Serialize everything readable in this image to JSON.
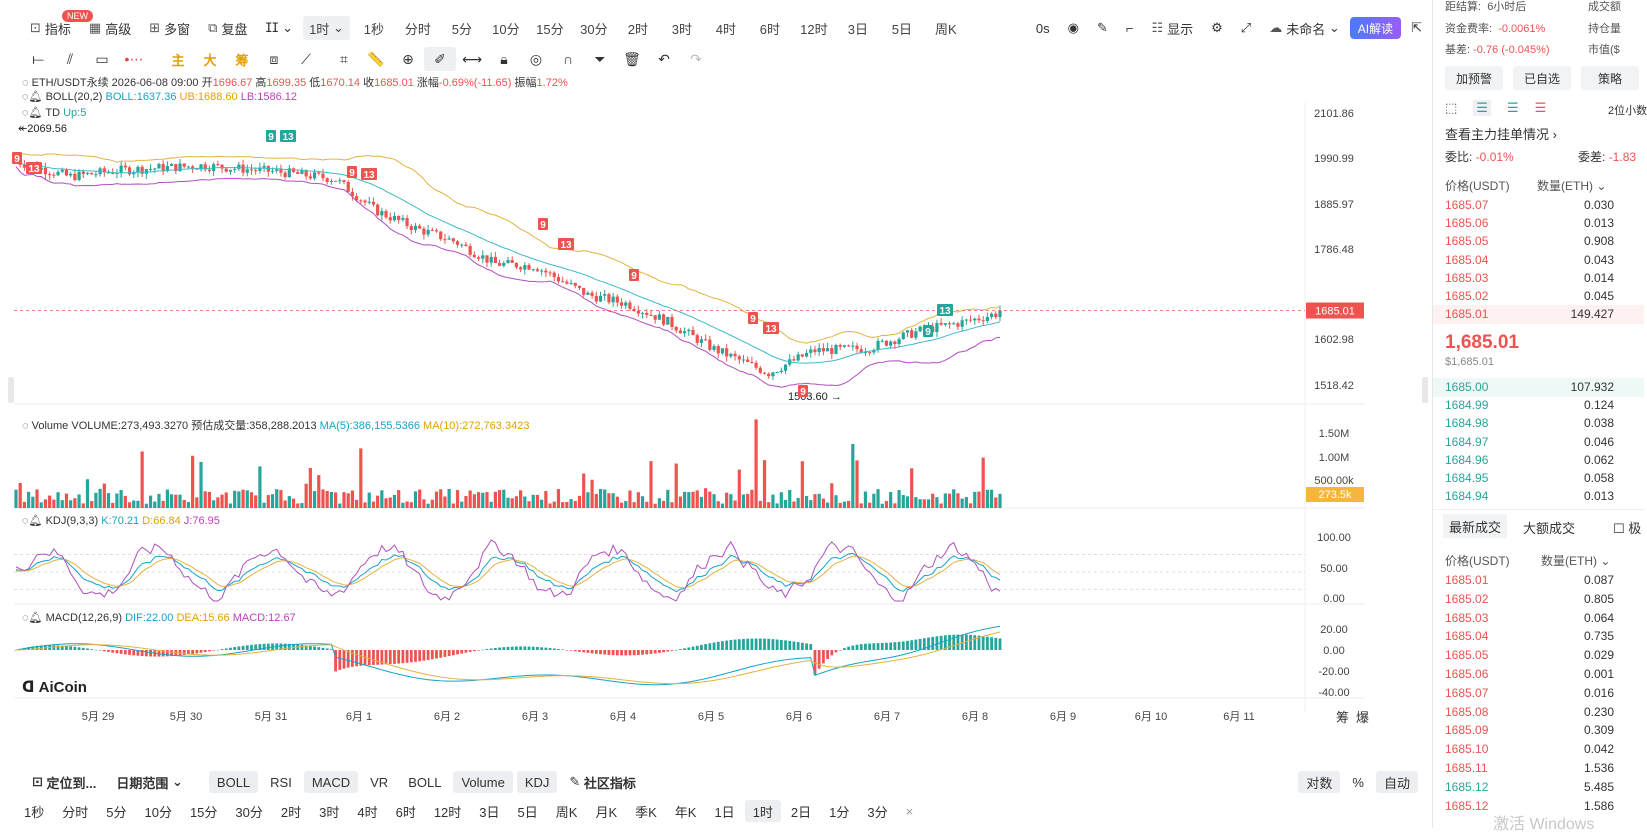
{
  "toolbar": {
    "indicator_label": "指标",
    "new_badge": "NEW",
    "advanced_label": "高级",
    "multi_window_label": "多窗",
    "replay_label": "复盘",
    "interval_current": "1时",
    "intervals": [
      "1秒",
      "分时",
      "5分",
      "10分",
      "15分",
      "30分",
      "2时",
      "3时",
      "4时",
      "6时",
      "12时",
      "3日",
      "5日",
      "周K"
    ],
    "countdown": "0s",
    "display_label": "显示",
    "unnamed_label": "未命名",
    "ai_label": "AI解读"
  },
  "drawing_tools": {
    "zhu_label": "主",
    "da_label": "大",
    "chou_label": "筹"
  },
  "legend": {
    "symbol": "ETH/USDT永续",
    "datetime": "2026-06-08 09:00",
    "open_label": "开",
    "open": "1696.67",
    "high_label": "高",
    "high": "1699.35",
    "low_label": "低",
    "low": "1670.14",
    "close_label": "收",
    "close": "1685.01",
    "change_label": "涨幅",
    "change": "-0.69%(-11.65)",
    "amplitude_label": "振幅",
    "amplitude": "1.72%",
    "boll_name": "BOLL(20,2)",
    "boll": "BOLL:1637.36",
    "ub": "UB:1688.60",
    "lb": "LB:1586.12",
    "td_name": "TD",
    "td_up": "Up:5",
    "volume_name": "Volume",
    "volume": "VOLUME:273,493.3270",
    "volume_est": "预估成交量:358,288.2013",
    "vol_ma5": "MA(5):386,155.5366",
    "vol_ma10": "MA(10):272,763.3423",
    "kdj_name": "KDJ(9,3,3)",
    "kdj_k": "K:70.21",
    "kdj_d": "D:66.84",
    "kdj_j": "J:76.95",
    "macd_name": "MACD(12,26,9)",
    "macd_dif": "DIF:22.00",
    "macd_dea": "DEA:15.66",
    "macd_macd": "MACD:12.67"
  },
  "price_axis": [
    "2101.86",
    "1990.99",
    "1885.97",
    "1786.48",
    "1602.98",
    "1518.42"
  ],
  "current_price_tag": "1685.01",
  "volume_axis": [
    "1.50M",
    "1.00M",
    "500.00k"
  ],
  "volume_tag": "273.5k",
  "kdj_axis": [
    "100.00",
    "50.00",
    "0.00"
  ],
  "macd_axis": [
    "20.00",
    "0.00",
    "-20.00",
    "-40.00"
  ],
  "high_marker": "2069.56",
  "low_marker": "1503.60",
  "td_labels": [
    "9",
    "13"
  ],
  "dates": [
    "5月 29",
    "5月 30",
    "5月 31",
    "6月 1",
    "6月 2",
    "6月 3",
    "6月 4",
    "6月 5",
    "6月 6",
    "6月 7",
    "6月 8",
    "6月 9",
    "6月 10",
    "6月 11"
  ],
  "watermark": "AiCoin",
  "bottom_bar1": {
    "locate_label": "定位到...",
    "date_range_label": "日期范围",
    "indicators": [
      "BOLL",
      "RSI",
      "MACD",
      "VR",
      "BOLL",
      "Volume",
      "KDJ"
    ],
    "community_label": "社区指标",
    "log_label": "对数",
    "pct_label": "%",
    "auto_label": "自动",
    "chip_label": "筹",
    "explode_label": "爆"
  },
  "bottom_bar2": {
    "intervals": [
      "1秒",
      "分时",
      "5分",
      "10分",
      "15分",
      "30分",
      "2时",
      "3时",
      "4时",
      "6时",
      "12时",
      "3日",
      "5日",
      "周K",
      "月K",
      "季K",
      "年K",
      "1日",
      "1时",
      "2日",
      "1分",
      "3分"
    ],
    "active": "1时"
  },
  "right_panel": {
    "settle_label": "距结算:",
    "settle_value": "6小时后",
    "turnover_label": "成交额",
    "funding_label": "资金费率:",
    "funding_value": "-0.0061%",
    "open_interest_label": "持仓量",
    "basis_label": "基差:",
    "basis_value": "-0.76 (-0.045%)",
    "mcap_label": "市值($",
    "alert_button": "加预警",
    "watch_button": "已自选",
    "strategy_button": "策略",
    "decimals_label": "2位小数",
    "main_orders_label": "查看主力挂单情况",
    "ratio_label": "委比:",
    "ratio_value": "-0.01%",
    "diff_label": "委差:",
    "diff_value": "-1.83",
    "price_header": "价格(USDT)",
    "qty_header": "数量(ETH)",
    "asks": [
      {
        "price": "1685.07",
        "qty": "0.030"
      },
      {
        "price": "1685.06",
        "qty": "0.013"
      },
      {
        "price": "1685.05",
        "qty": "0.908"
      },
      {
        "price": "1685.04",
        "qty": "0.043"
      },
      {
        "price": "1685.03",
        "qty": "0.014"
      },
      {
        "price": "1685.02",
        "qty": "0.045"
      },
      {
        "price": "1685.01",
        "qty": "149.427"
      }
    ],
    "last_price": "1,685.01",
    "last_price_usd": "$1,685.01",
    "bids": [
      {
        "price": "1685.00",
        "qty": "107.932"
      },
      {
        "price": "1684.99",
        "qty": "0.124"
      },
      {
        "price": "1684.98",
        "qty": "0.038"
      },
      {
        "price": "1684.97",
        "qty": "0.046"
      },
      {
        "price": "1684.96",
        "qty": "0.062"
      },
      {
        "price": "1684.95",
        "qty": "0.058"
      },
      {
        "price": "1684.94",
        "qty": "0.013"
      }
    ],
    "tab_latest": "最新成交",
    "tab_large": "大额成交",
    "tab_extreme": "极",
    "trades_price_header": "价格(USDT)",
    "trades_qty_header": "数量(ETH)",
    "trades": [
      {
        "price": "1685.01",
        "qty": "0.087",
        "side": "sell"
      },
      {
        "price": "1685.02",
        "qty": "0.805",
        "side": "sell"
      },
      {
        "price": "1685.03",
        "qty": "0.064",
        "side": "sell"
      },
      {
        "price": "1685.04",
        "qty": "0.735",
        "side": "sell"
      },
      {
        "price": "1685.05",
        "qty": "0.029",
        "side": "sell"
      },
      {
        "price": "1685.06",
        "qty": "0.001",
        "side": "sell"
      },
      {
        "price": "1685.07",
        "qty": "0.016",
        "side": "sell"
      },
      {
        "price": "1685.08",
        "qty": "0.230",
        "side": "sell"
      },
      {
        "price": "1685.09",
        "qty": "0.309",
        "side": "sell"
      },
      {
        "price": "1685.10",
        "qty": "0.042",
        "side": "sell"
      },
      {
        "price": "1685.11",
        "qty": "1.536",
        "side": "sell"
      },
      {
        "price": "1685.12",
        "qty": "5.485",
        "side": "buy"
      },
      {
        "price": "1685.12",
        "qty": "1.586",
        "side": "sell"
      }
    ],
    "windows_watermark": "激活 Windows"
  },
  "colors": {
    "up": "#26a69a",
    "down": "#ef5350",
    "boll_mid": "#3fb8c8",
    "boll_ub": "#e3b341",
    "boll_lb": "#b04fc0"
  }
}
